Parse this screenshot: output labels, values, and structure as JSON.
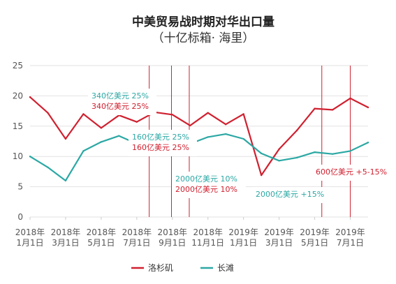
{
  "chart_data": {
    "type": "line",
    "title": "中美贸易战时期对华出口量",
    "subtitle": "（十亿标箱· 海里）",
    "xlabel": "",
    "ylabel": "",
    "ylim": [
      0,
      25
    ],
    "yticks": [
      0,
      5,
      10,
      15,
      20,
      25
    ],
    "grid": true,
    "legend_position": "bottom-center",
    "x": [
      "2018-01",
      "2018-02",
      "2018-03",
      "2018-04",
      "2018-05",
      "2018-06",
      "2018-07",
      "2018-08",
      "2018-09",
      "2018-10",
      "2018-11",
      "2018-12",
      "2019-01",
      "2019-02",
      "2019-03",
      "2019-04",
      "2019-05",
      "2019-06",
      "2019-07",
      "2019-08"
    ],
    "xtick_labels": [
      {
        "month_index": 0,
        "line1": "2018年",
        "line2": "1月1日"
      },
      {
        "month_index": 2,
        "line1": "2018年",
        "line2": "3月1日"
      },
      {
        "month_index": 4,
        "line1": "2018年",
        "line2": "5月1日"
      },
      {
        "month_index": 6,
        "line1": "2018年",
        "line2": "7月1日"
      },
      {
        "month_index": 8,
        "line1": "2018年",
        "line2": "9月1日"
      },
      {
        "month_index": 10,
        "line1": "2018年",
        "line2": "11月1日"
      },
      {
        "month_index": 12,
        "line1": "2019年",
        "line2": "1月1日"
      },
      {
        "month_index": 14,
        "line1": "2019年",
        "line2": "3月1日"
      },
      {
        "month_index": 16,
        "line1": "2019年",
        "line2": "5月1日"
      },
      {
        "month_index": 18,
        "line1": "2019年",
        "line2": "7月1日"
      }
    ],
    "series": [
      {
        "name": "洛杉矶",
        "color": "#d0202f",
        "values": [
          19.8,
          17.2,
          12.9,
          17.0,
          14.7,
          16.8,
          15.7,
          17.3,
          16.9,
          15.1,
          17.2,
          15.3,
          17.0,
          6.9,
          11.2,
          14.3,
          17.9,
          17.7,
          19.6,
          18.1
        ]
      },
      {
        "name": "长滩",
        "color": "#2ba8a4",
        "values": [
          10.0,
          8.2,
          6.0,
          10.9,
          12.4,
          13.4,
          12.1,
          11.7,
          10.9,
          12.1,
          13.2,
          13.7,
          12.9,
          10.5,
          9.3,
          9.8,
          10.7,
          10.4,
          10.9,
          12.3
        ]
      }
    ],
    "event_lines": [
      {
        "month": 6.7,
        "color": "#d0202f"
      },
      {
        "month": 7.95,
        "color": "#d0202f"
      },
      {
        "month": 8.95,
        "color": "#d0202f"
      },
      {
        "month": 16.4,
        "color": "#d0202f"
      },
      {
        "month": 18.0,
        "color": "#d0202f"
      }
    ],
    "annotations": [
      {
        "lines": [
          {
            "text": "340亿美元 25%",
            "color": "#2ba8a4"
          },
          {
            "text": "340亿美元 25%",
            "color": "#d0202f"
          }
        ]
      },
      {
        "lines": [
          {
            "text": "160亿美元 25%",
            "color": "#2ba8a4"
          },
          {
            "text": "160亿美元 25%",
            "color": "#d0202f"
          }
        ]
      },
      {
        "lines": [
          {
            "text": "2000亿美元 10%",
            "color": "#2ba8a4"
          },
          {
            "text": "2000亿美元 10%",
            "color": "#d0202f"
          }
        ]
      },
      {
        "lines": [
          {
            "text": "2000亿美元 +15%",
            "color": "#2ba8a4"
          }
        ]
      },
      {
        "lines": [
          {
            "text": "600亿美元 +5-15%",
            "color": "#d0202f"
          }
        ]
      }
    ]
  }
}
